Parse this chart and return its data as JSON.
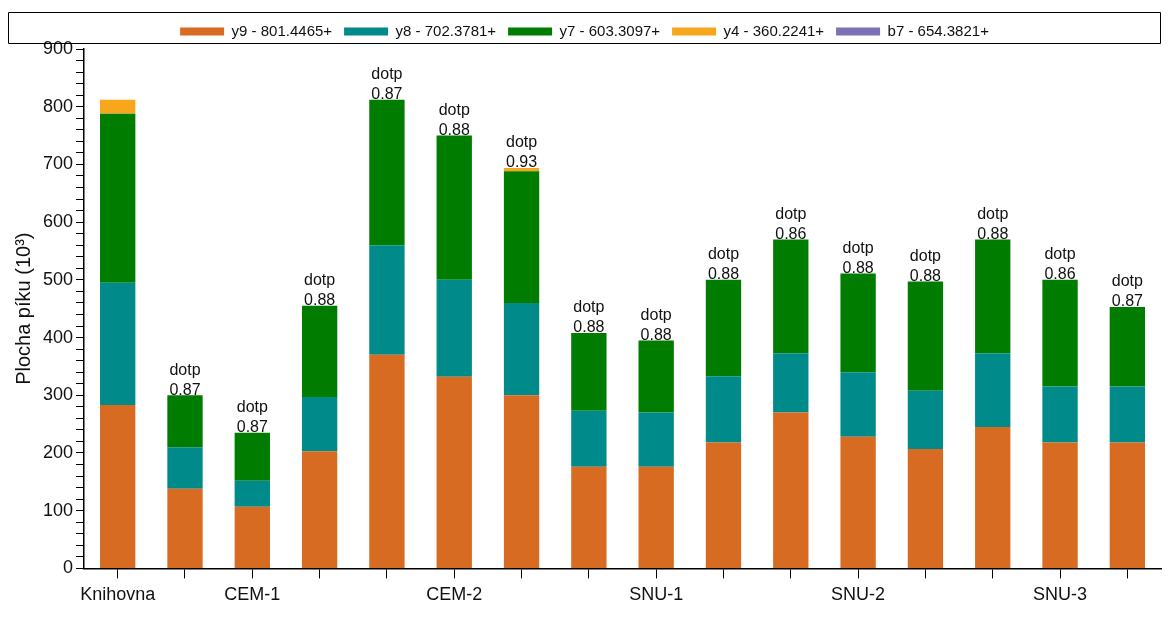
{
  "chart_data": {
    "type": "bar",
    "stacked": true,
    "ylabel": "Plocha píku (10³)",
    "legend": "top",
    "categories": [
      "Knihovna",
      null,
      "CEM-1",
      null,
      null,
      "CEM-2",
      null,
      null,
      "SNU-1",
      null,
      null,
      "SNU-2",
      null,
      null,
      "SNU-3",
      null
    ],
    "ylim": [
      0,
      900
    ],
    "yticks": [
      0,
      {
        "value": 20,
        "label": null
      },
      {
        "value": 40,
        "label": null
      },
      {
        "value": 60,
        "label": null
      },
      {
        "value": 80,
        "label": null
      },
      100,
      {
        "value": 120,
        "label": null
      },
      {
        "value": 140,
        "label": null
      },
      {
        "value": 160,
        "label": null
      },
      {
        "value": 180,
        "label": null
      },
      200,
      {
        "value": 220,
        "label": null
      },
      {
        "value": 240,
        "label": null
      },
      {
        "value": 260,
        "label": null
      },
      {
        "value": 280,
        "label": null
      },
      300,
      {
        "value": 320,
        "label": null
      },
      {
        "value": 340,
        "label": null
      },
      {
        "value": 360,
        "label": null
      },
      {
        "value": 380,
        "label": null
      },
      400,
      {
        "value": 420,
        "label": null
      },
      {
        "value": 440,
        "label": null
      },
      {
        "value": 460,
        "label": null
      },
      {
        "value": 480,
        "label": null
      },
      500,
      {
        "value": 520,
        "label": null
      },
      {
        "value": 540,
        "label": null
      },
      {
        "value": 560,
        "label": null
      },
      {
        "value": 580,
        "label": null
      },
      600,
      {
        "value": 620,
        "label": null
      },
      {
        "value": 640,
        "label": null
      },
      {
        "value": 660,
        "label": null
      },
      {
        "value": 680,
        "label": null
      },
      700,
      {
        "value": 720,
        "label": null
      },
      {
        "value": 740,
        "label": null
      },
      {
        "value": 760,
        "label": null
      },
      {
        "value": 780,
        "label": null
      },
      800,
      {
        "value": 820,
        "label": null
      },
      {
        "value": 840,
        "label": null
      },
      {
        "value": 860,
        "label": null
      },
      {
        "value": 880,
        "label": null
      },
      900
    ],
    "grid": false,
    "series": [
      {
        "name": "y9 - 801.4465+",
        "color": "#d86b22",
        "values": [
          283,
          138,
          107,
          203,
          370,
          332,
          300,
          176,
          176,
          218,
          270,
          228,
          207,
          245,
          218,
          218
        ]
      },
      {
        "name": "y8 - 702.3781+",
        "color": "#008a8a",
        "values": [
          212,
          72,
          45,
          94,
          190,
          168,
          160,
          97,
          94,
          115,
          103,
          112,
          101,
          128,
          97,
          97
        ]
      },
      {
        "name": "y7 - 603.3097+",
        "color": "#007d00",
        "values": [
          293,
          90,
          83,
          158,
          252,
          250,
          228,
          135,
          125,
          167,
          197,
          171,
          189,
          197,
          185,
          138
        ],
        "value_labels": [
          null,
          "dotp 0.87",
          "dotp 0.87",
          "dotp 0.88",
          "dotp 0.87",
          "dotp 0.88",
          "dotp 0.93",
          "dotp 0.88",
          "dotp 0.88",
          "dotp 0.88",
          "dotp 0.86",
          "dotp 0.88",
          "dotp 0.88",
          "dotp 0.88",
          "dotp 0.86",
          "dotp 0.87"
        ]
      },
      {
        "name": "y4 - 360.2241+",
        "color": "#f8a61c",
        "values": [
          24,
          null,
          null,
          null,
          null,
          null,
          6,
          null,
          null,
          null,
          null,
          null,
          null,
          null,
          null,
          null
        ]
      },
      {
        "name": "b7 - 654.3821+",
        "color": "#7b72b6",
        "values": [
          null,
          null,
          null,
          null,
          null,
          null,
          null,
          null,
          null,
          null,
          null,
          null,
          null,
          null,
          null,
          null
        ]
      }
    ]
  }
}
